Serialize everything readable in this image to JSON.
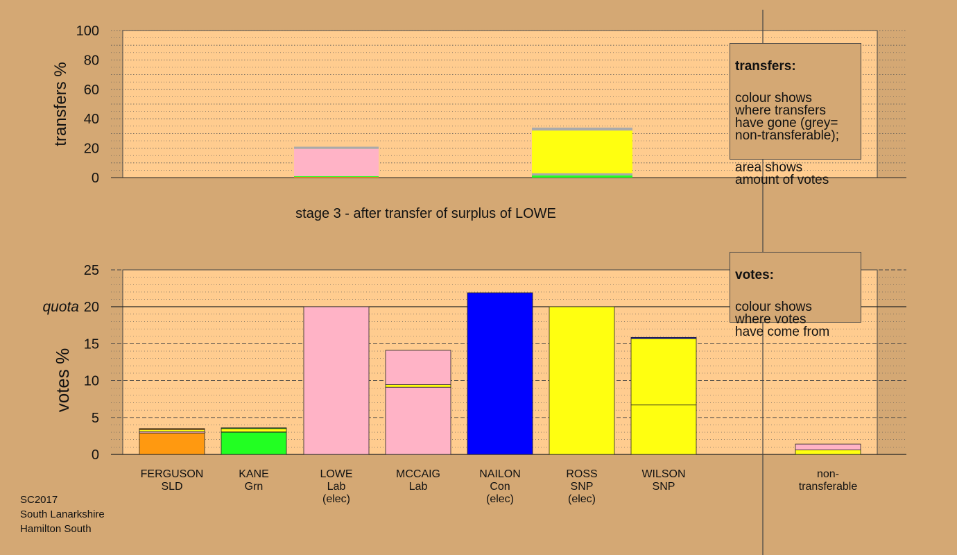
{
  "colors": {
    "background": "#d4a874",
    "plot_background": "#ffcc8f",
    "SLD": "#ff9910",
    "Grn": "#22ff22",
    "Lab": "#ffb3c6",
    "Con": "#0000ff",
    "SNP": "#ffff10",
    "nontransferable": "#aaaaaa"
  },
  "chart_data": [
    {
      "type": "bar",
      "subtype": "stacked",
      "ylabel": "transfers %",
      "ylim": [
        0,
        100
      ],
      "yticks": [
        0,
        20,
        40,
        60,
        80,
        100
      ],
      "grid": "dotted",
      "caption": "stage 3 - after transfer of surplus of LOWE",
      "bars": [
        {
          "column": 2,
          "segments": [
            {
              "party": "SLD",
              "value": 0.5
            },
            {
              "party": "Grn",
              "value": 0.5
            },
            {
              "party": "Lab",
              "value": 18.5
            },
            {
              "party": "nontransferable",
              "value": 1.5
            }
          ]
        },
        {
          "column": 5,
          "segments": [
            {
              "party": "Grn",
              "value": 1.5
            },
            {
              "party": "Con",
              "value": 0.0
            },
            {
              "party": "nontransferable",
              "value": 1.5
            },
            {
              "party": "SNP",
              "value": 29.0
            },
            {
              "party": "nontransferable",
              "value": 2.0
            }
          ]
        }
      ],
      "legend": {
        "title": "transfers:",
        "lines": [
          "colour shows\nwhere transfers\nhave gone (grey=\nnon-transferable);",
          "area shows\namount of votes"
        ],
        "placement": "top-right"
      }
    },
    {
      "type": "bar",
      "subtype": "stacked",
      "ylabel": "votes %",
      "ylim": [
        0,
        25
      ],
      "yticks": [
        0,
        5,
        10,
        15,
        20,
        25
      ],
      "quota": {
        "label": "quota",
        "value": 20
      },
      "grid": "dashed",
      "categories": [
        {
          "name": "FERGUSON",
          "party": "SLD",
          "status": ""
        },
        {
          "name": "KANE",
          "party": "Grn",
          "status": ""
        },
        {
          "name": "LOWE",
          "party": "Lab",
          "status": "(elec)"
        },
        {
          "name": "MCCAIG",
          "party": "Lab",
          "status": ""
        },
        {
          "name": "NAILON",
          "party": "Con",
          "status": "(elec)"
        },
        {
          "name": "ROSS",
          "party": "SNP",
          "status": "(elec)"
        },
        {
          "name": "WILSON",
          "party": "SNP",
          "status": ""
        },
        {
          "name": "",
          "party": "",
          "status": ""
        },
        {
          "name": "non-",
          "party": "transferable",
          "status": ""
        }
      ],
      "bars": [
        {
          "column": 0,
          "segments": [
            {
              "party": "SLD",
              "value": 2.9
            },
            {
              "party": "Lab",
              "value": 0.2
            },
            {
              "party": "SNP",
              "value": 0.25
            },
            {
              "party": "SLD",
              "value": 0.15
            }
          ]
        },
        {
          "column": 1,
          "segments": [
            {
              "party": "Grn",
              "value": 3.0
            },
            {
              "party": "Lab",
              "value": 0.05
            },
            {
              "party": "SNP",
              "value": 0.45
            },
            {
              "party": "Grn",
              "value": 0.1
            }
          ]
        },
        {
          "column": 2,
          "segments": [
            {
              "party": "Lab",
              "value": 20.0
            }
          ]
        },
        {
          "column": 3,
          "segments": [
            {
              "party": "Lab",
              "value": 9.1
            },
            {
              "party": "SNP",
              "value": 0.35
            },
            {
              "party": "Lab",
              "value": 4.65
            }
          ]
        },
        {
          "column": 4,
          "segments": [
            {
              "party": "Con",
              "value": 21.9
            }
          ]
        },
        {
          "column": 5,
          "segments": [
            {
              "party": "SNP",
              "value": 20.0
            }
          ]
        },
        {
          "column": 6,
          "segments": [
            {
              "party": "SNP",
              "value": 6.7
            },
            {
              "party": "SNP",
              "value": 9.0
            },
            {
              "party": "Con",
              "value": 0.15
            }
          ]
        },
        {
          "column": 8,
          "segments": [
            {
              "party": "SNP",
              "value": 0.6
            },
            {
              "party": "Lab",
              "value": 0.8
            }
          ]
        }
      ],
      "legend": {
        "title": "votes:",
        "lines": [
          "colour shows\nwhere votes\nhave come from"
        ],
        "placement": "top-right"
      }
    }
  ],
  "footer": {
    "line1": "SC2017",
    "line2": "South Lanarkshire",
    "line3": "Hamilton South"
  }
}
